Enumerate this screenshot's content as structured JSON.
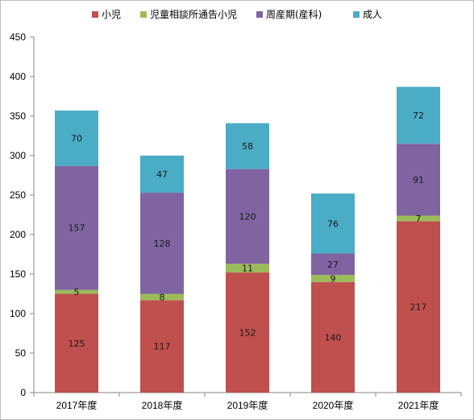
{
  "chart_data": {
    "type": "bar",
    "stacked": true,
    "categories": [
      "2017年度",
      "2018年度",
      "2019年度",
      "2020年度",
      "2021年度"
    ],
    "series": [
      {
        "name": "小児",
        "color": "#c0504d",
        "values": [
          125,
          117,
          152,
          140,
          217
        ]
      },
      {
        "name": "児童相談所通告小児",
        "color": "#9bbb59",
        "values": [
          5,
          8,
          11,
          9,
          7
        ]
      },
      {
        "name": "周産期(産科)",
        "color": "#8064a2",
        "values": [
          157,
          128,
          120,
          27,
          91
        ]
      },
      {
        "name": "成人",
        "color": "#4bacc6",
        "values": [
          70,
          47,
          58,
          76,
          72
        ]
      }
    ],
    "ylim": [
      0,
      450
    ],
    "yticks": [
      0,
      50,
      100,
      150,
      200,
      250,
      300,
      350,
      400,
      450
    ],
    "grid": false,
    "legend_position": "top",
    "title": "",
    "xlabel": "",
    "ylabel": ""
  }
}
